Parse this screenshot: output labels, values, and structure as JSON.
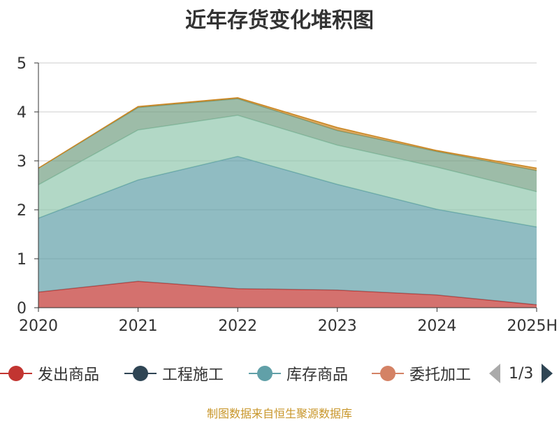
{
  "chart_data": {
    "type": "area",
    "stacked": true,
    "title": "近年存货变化堆积图",
    "categories": [
      "2020",
      "2021",
      "2022",
      "2023",
      "2024",
      "2025H"
    ],
    "ylim": [
      0,
      5
    ],
    "yticks": [
      "0",
      "1",
      "2",
      "3",
      "4",
      "5"
    ],
    "grid": true,
    "legend_position": "bottom",
    "series": [
      {
        "name": "发出商品",
        "color": "#c23531",
        "values": [
          0.32,
          0.54,
          0.39,
          0.36,
          0.26,
          0.06
        ]
      },
      {
        "name": "工程施工",
        "color": "#2f4554",
        "values": [
          0,
          0,
          0,
          0,
          0,
          0
        ]
      },
      {
        "name": "库存商品",
        "color": "#61a0a8",
        "values": [
          1.51,
          2.07,
          2.7,
          2.16,
          1.75,
          1.59
        ]
      },
      {
        "name": "委托加工",
        "color": "#d48265",
        "values": [
          0,
          0,
          0,
          0,
          0,
          0
        ]
      },
      {
        "name": "",
        "color": "#91c7ae",
        "values": [
          0.68,
          1.02,
          0.84,
          0.8,
          0.86,
          0.72
        ]
      },
      {
        "name": "",
        "color": "#749f83",
        "values": [
          0.34,
          0.46,
          0.34,
          0.3,
          0.32,
          0.43
        ]
      },
      {
        "name": "",
        "color": "#ca8622",
        "values": [
          0.0,
          0.02,
          0.02,
          0.06,
          0.02,
          0.05
        ]
      }
    ]
  },
  "legend": {
    "items": [
      {
        "label": "发出商品",
        "color": "#c23531"
      },
      {
        "label": "工程施工",
        "color": "#2f4554"
      },
      {
        "label": "库存商品",
        "color": "#61a0a8"
      },
      {
        "label": "委托加工",
        "color": "#d48265"
      }
    ],
    "page_text": "1/3"
  },
  "source_note": "制图数据来自恒生聚源数据库"
}
